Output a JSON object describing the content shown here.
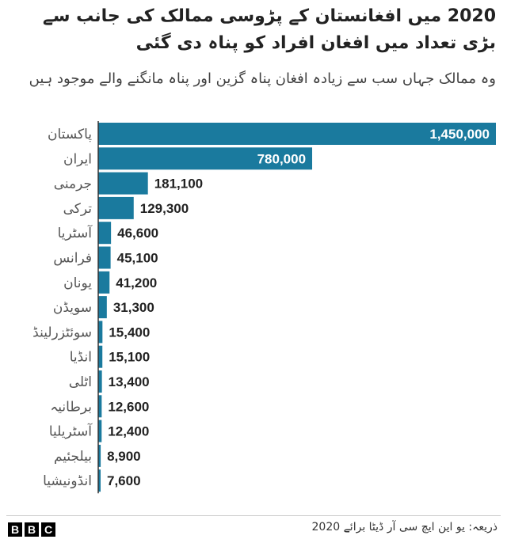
{
  "header": {
    "title": "2020 میں افغانستان کے پڑوسی ممالک کی جانب سے بڑی تعداد میں افغان افراد کو پناہ دی گئی",
    "subtitle": "وہ ممالک جہاں سب سے زیادہ افغان پناہ گزین اور پناہ مانگنے والے موجود ہیں"
  },
  "footer": {
    "source": "ذریعہ: یو این ایچ سی آر ڈیٹا برائے 2020",
    "logo_letters": [
      "B",
      "B",
      "C"
    ]
  },
  "colors": {
    "bar": "#1a7a9e",
    "axis": "#333333",
    "value_inside": "#ffffff",
    "value_outside": "#222222"
  },
  "chart_data": {
    "type": "bar",
    "orientation": "horizontal",
    "title": "2020 میں افغانستان کے پڑوسی ممالک کی جانب سے بڑی تعداد میں افغان افراد کو پناہ دی گئی",
    "subtitle": "وہ ممالک جہاں سب سے زیادہ افغان پناہ گزین اور پناہ مانگنے والے موجود ہیں",
    "categories": [
      "پاکستان",
      "ایران",
      "جرمنی",
      "ترکی",
      "آسٹریا",
      "فرانس",
      "یونان",
      "سویڈن",
      "سوئٹزرلینڈ",
      "انڈیا",
      "اٹلی",
      "برطانیہ",
      "آسٹریلیا",
      "بیلجئیم",
      "انڈونیشیا"
    ],
    "values": [
      1450000,
      780000,
      181100,
      129300,
      46600,
      45100,
      41200,
      31300,
      15400,
      15100,
      13400,
      12600,
      12400,
      8900,
      7600
    ],
    "value_labels": [
      "1,450,000",
      "780,000",
      "181,100",
      "129,300",
      "46,600",
      "45,100",
      "41,200",
      "31,300",
      "15,400",
      "15,100",
      "13,400",
      "12,600",
      "12,400",
      "8,900",
      "7,600"
    ],
    "xlim": [
      0,
      1450000
    ],
    "grid": false,
    "legend": "none"
  }
}
